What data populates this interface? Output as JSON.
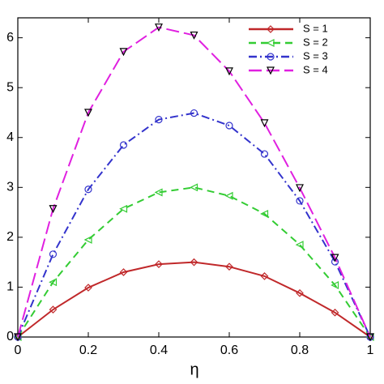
{
  "chart_data": {
    "type": "line",
    "x_label": "η",
    "x": [
      0,
      0.1,
      0.2,
      0.3,
      0.4,
      0.5,
      0.6,
      0.7,
      0.8,
      0.9,
      1
    ],
    "series": [
      {
        "name": "S = 1",
        "color": "#c0282a",
        "dash": "solid",
        "marker": "diamond",
        "values": [
          0,
          0.55,
          0.99,
          1.3,
          1.46,
          1.5,
          1.41,
          1.22,
          0.88,
          0.49,
          0
        ]
      },
      {
        "name": "S = 2",
        "color": "#33cc33",
        "dash": "dashed",
        "marker": "triangle-left",
        "values": [
          0,
          1.1,
          1.95,
          2.57,
          2.9,
          3.0,
          2.83,
          2.47,
          1.85,
          1.04,
          0
        ]
      },
      {
        "name": "S = 3",
        "color": "#3333cc",
        "dash": "dashdot",
        "marker": "circle",
        "values": [
          0,
          1.66,
          2.96,
          3.85,
          4.36,
          4.49,
          4.24,
          3.67,
          2.73,
          1.51,
          0
        ]
      },
      {
        "name": "S = 4",
        "color": "#e020e0",
        "dash": "longdash",
        "marker": "triangle-down",
        "marker_color": "#000000",
        "values": [
          0,
          2.57,
          4.5,
          5.72,
          6.21,
          6.05,
          5.33,
          4.29,
          2.99,
          1.59,
          0
        ]
      }
    ],
    "xlim": [
      0,
      1
    ],
    "xticks": [
      0,
      0.2,
      0.4,
      0.6,
      0.8,
      1
    ],
    "ylim": [
      0,
      6.4
    ],
    "yticks": [
      0,
      1,
      2,
      3,
      4,
      5,
      6
    ],
    "legend": "upper-right",
    "grid": false
  }
}
